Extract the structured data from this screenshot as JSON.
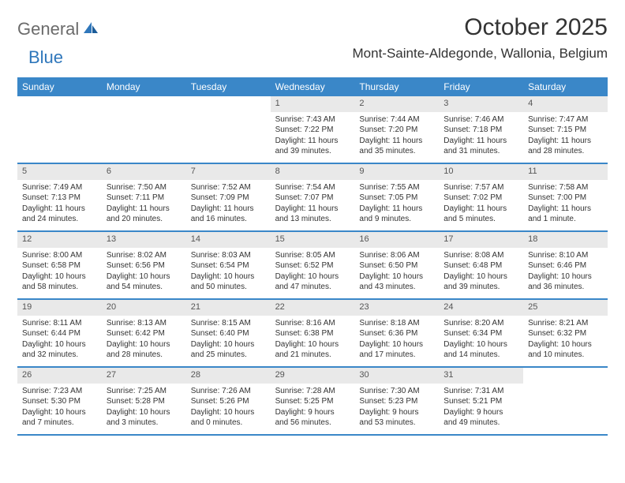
{
  "logo": {
    "textGeneral": "General",
    "textBlue": "Blue"
  },
  "title": "October 2025",
  "location": "Mont-Sainte-Aldegonde, Wallonia, Belgium",
  "colors": {
    "headerBg": "#3a87c8",
    "headerText": "#ffffff",
    "dayNumberBg": "#e9e9e9",
    "dayNumberText": "#555555",
    "bodyText": "#333333",
    "rowBorder": "#3a87c8",
    "logoGray": "#6b6b6b",
    "logoBlue": "#2f77bb",
    "pageBg": "#ffffff"
  },
  "dayNames": [
    "Sunday",
    "Monday",
    "Tuesday",
    "Wednesday",
    "Thursday",
    "Friday",
    "Saturday"
  ],
  "weeks": [
    [
      null,
      null,
      null,
      {
        "n": "1",
        "sr": "Sunrise: 7:43 AM",
        "ss": "Sunset: 7:22 PM",
        "dl1": "Daylight: 11 hours",
        "dl2": "and 39 minutes."
      },
      {
        "n": "2",
        "sr": "Sunrise: 7:44 AM",
        "ss": "Sunset: 7:20 PM",
        "dl1": "Daylight: 11 hours",
        "dl2": "and 35 minutes."
      },
      {
        "n": "3",
        "sr": "Sunrise: 7:46 AM",
        "ss": "Sunset: 7:18 PM",
        "dl1": "Daylight: 11 hours",
        "dl2": "and 31 minutes."
      },
      {
        "n": "4",
        "sr": "Sunrise: 7:47 AM",
        "ss": "Sunset: 7:15 PM",
        "dl1": "Daylight: 11 hours",
        "dl2": "and 28 minutes."
      }
    ],
    [
      {
        "n": "5",
        "sr": "Sunrise: 7:49 AM",
        "ss": "Sunset: 7:13 PM",
        "dl1": "Daylight: 11 hours",
        "dl2": "and 24 minutes."
      },
      {
        "n": "6",
        "sr": "Sunrise: 7:50 AM",
        "ss": "Sunset: 7:11 PM",
        "dl1": "Daylight: 11 hours",
        "dl2": "and 20 minutes."
      },
      {
        "n": "7",
        "sr": "Sunrise: 7:52 AM",
        "ss": "Sunset: 7:09 PM",
        "dl1": "Daylight: 11 hours",
        "dl2": "and 16 minutes."
      },
      {
        "n": "8",
        "sr": "Sunrise: 7:54 AM",
        "ss": "Sunset: 7:07 PM",
        "dl1": "Daylight: 11 hours",
        "dl2": "and 13 minutes."
      },
      {
        "n": "9",
        "sr": "Sunrise: 7:55 AM",
        "ss": "Sunset: 7:05 PM",
        "dl1": "Daylight: 11 hours",
        "dl2": "and 9 minutes."
      },
      {
        "n": "10",
        "sr": "Sunrise: 7:57 AM",
        "ss": "Sunset: 7:02 PM",
        "dl1": "Daylight: 11 hours",
        "dl2": "and 5 minutes."
      },
      {
        "n": "11",
        "sr": "Sunrise: 7:58 AM",
        "ss": "Sunset: 7:00 PM",
        "dl1": "Daylight: 11 hours",
        "dl2": "and 1 minute."
      }
    ],
    [
      {
        "n": "12",
        "sr": "Sunrise: 8:00 AM",
        "ss": "Sunset: 6:58 PM",
        "dl1": "Daylight: 10 hours",
        "dl2": "and 58 minutes."
      },
      {
        "n": "13",
        "sr": "Sunrise: 8:02 AM",
        "ss": "Sunset: 6:56 PM",
        "dl1": "Daylight: 10 hours",
        "dl2": "and 54 minutes."
      },
      {
        "n": "14",
        "sr": "Sunrise: 8:03 AM",
        "ss": "Sunset: 6:54 PM",
        "dl1": "Daylight: 10 hours",
        "dl2": "and 50 minutes."
      },
      {
        "n": "15",
        "sr": "Sunrise: 8:05 AM",
        "ss": "Sunset: 6:52 PM",
        "dl1": "Daylight: 10 hours",
        "dl2": "and 47 minutes."
      },
      {
        "n": "16",
        "sr": "Sunrise: 8:06 AM",
        "ss": "Sunset: 6:50 PM",
        "dl1": "Daylight: 10 hours",
        "dl2": "and 43 minutes."
      },
      {
        "n": "17",
        "sr": "Sunrise: 8:08 AM",
        "ss": "Sunset: 6:48 PM",
        "dl1": "Daylight: 10 hours",
        "dl2": "and 39 minutes."
      },
      {
        "n": "18",
        "sr": "Sunrise: 8:10 AM",
        "ss": "Sunset: 6:46 PM",
        "dl1": "Daylight: 10 hours",
        "dl2": "and 36 minutes."
      }
    ],
    [
      {
        "n": "19",
        "sr": "Sunrise: 8:11 AM",
        "ss": "Sunset: 6:44 PM",
        "dl1": "Daylight: 10 hours",
        "dl2": "and 32 minutes."
      },
      {
        "n": "20",
        "sr": "Sunrise: 8:13 AM",
        "ss": "Sunset: 6:42 PM",
        "dl1": "Daylight: 10 hours",
        "dl2": "and 28 minutes."
      },
      {
        "n": "21",
        "sr": "Sunrise: 8:15 AM",
        "ss": "Sunset: 6:40 PM",
        "dl1": "Daylight: 10 hours",
        "dl2": "and 25 minutes."
      },
      {
        "n": "22",
        "sr": "Sunrise: 8:16 AM",
        "ss": "Sunset: 6:38 PM",
        "dl1": "Daylight: 10 hours",
        "dl2": "and 21 minutes."
      },
      {
        "n": "23",
        "sr": "Sunrise: 8:18 AM",
        "ss": "Sunset: 6:36 PM",
        "dl1": "Daylight: 10 hours",
        "dl2": "and 17 minutes."
      },
      {
        "n": "24",
        "sr": "Sunrise: 8:20 AM",
        "ss": "Sunset: 6:34 PM",
        "dl1": "Daylight: 10 hours",
        "dl2": "and 14 minutes."
      },
      {
        "n": "25",
        "sr": "Sunrise: 8:21 AM",
        "ss": "Sunset: 6:32 PM",
        "dl1": "Daylight: 10 hours",
        "dl2": "and 10 minutes."
      }
    ],
    [
      {
        "n": "26",
        "sr": "Sunrise: 7:23 AM",
        "ss": "Sunset: 5:30 PM",
        "dl1": "Daylight: 10 hours",
        "dl2": "and 7 minutes."
      },
      {
        "n": "27",
        "sr": "Sunrise: 7:25 AM",
        "ss": "Sunset: 5:28 PM",
        "dl1": "Daylight: 10 hours",
        "dl2": "and 3 minutes."
      },
      {
        "n": "28",
        "sr": "Sunrise: 7:26 AM",
        "ss": "Sunset: 5:26 PM",
        "dl1": "Daylight: 10 hours",
        "dl2": "and 0 minutes."
      },
      {
        "n": "29",
        "sr": "Sunrise: 7:28 AM",
        "ss": "Sunset: 5:25 PM",
        "dl1": "Daylight: 9 hours",
        "dl2": "and 56 minutes."
      },
      {
        "n": "30",
        "sr": "Sunrise: 7:30 AM",
        "ss": "Sunset: 5:23 PM",
        "dl1": "Daylight: 9 hours",
        "dl2": "and 53 minutes."
      },
      {
        "n": "31",
        "sr": "Sunrise: 7:31 AM",
        "ss": "Sunset: 5:21 PM",
        "dl1": "Daylight: 9 hours",
        "dl2": "and 49 minutes."
      },
      null
    ]
  ]
}
